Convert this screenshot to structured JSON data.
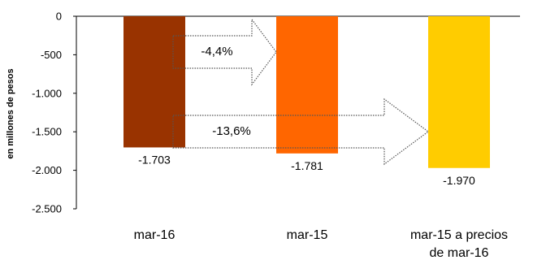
{
  "chart_data": {
    "type": "bar",
    "ylabel": "en millones de pesos",
    "ylim": [
      -2500,
      0
    ],
    "yticks": [
      0,
      -500,
      -1000,
      -1500,
      -2000,
      -2500
    ],
    "ytick_labels": [
      "0",
      "-500",
      "-1.000",
      "-1.500",
      "-2.000",
      "-2.500"
    ],
    "categories": [
      [
        "mar-16"
      ],
      [
        "mar-15"
      ],
      [
        "mar-15 a precios",
        "de mar-16"
      ]
    ],
    "values": [
      -1703,
      -1781,
      -1970
    ],
    "value_labels": [
      "-1.703",
      "-1.781",
      "-1.970"
    ],
    "colors": [
      "#993300",
      "#ff6600",
      "#ffcc00"
    ],
    "annotations": [
      {
        "text": "-4,4%",
        "from": 0,
        "to": 1,
        "shape": "dotted-arrow"
      },
      {
        "text": "-13,6%",
        "from": 0,
        "to": 2,
        "shape": "dotted-arrow"
      }
    ],
    "grid": false,
    "legend": "none"
  }
}
